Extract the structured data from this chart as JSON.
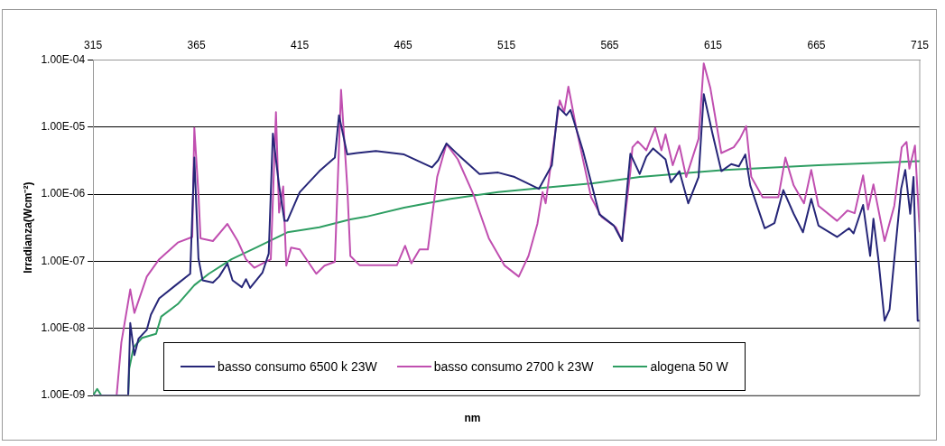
{
  "chart_data": {
    "type": "line",
    "xlabel": "nm",
    "ylabel": "Irradianza(Wcm⁻²)",
    "log": "y",
    "grid": "y",
    "legend": "bottom",
    "marker": "none",
    "line_style": "solid",
    "xlim": [
      315,
      715
    ],
    "xticks": [
      315,
      365,
      415,
      465,
      515,
      565,
      615,
      665,
      715
    ],
    "ylim": [
      1e-09,
      0.0001
    ],
    "yticks": [
      {
        "value": 1e-09,
        "label": "1.00E-09"
      },
      {
        "value": 1e-08,
        "label": "1.00E-08"
      },
      {
        "value": 1e-07,
        "label": "1.00E-07"
      },
      {
        "value": 1e-06,
        "label": "1.00E-06"
      },
      {
        "value": 1e-05,
        "label": "1.00E-05"
      },
      {
        "value": 0.0001,
        "label": "1.00E-04"
      }
    ],
    "series": [
      {
        "name": "basso consumo 6500 k 23W",
        "color": "#262678",
        "x": [
          315,
          332,
          333,
          335,
          337,
          341,
          343,
          347,
          355,
          362,
          364,
          366,
          368,
          373,
          376,
          380,
          382.5,
          387,
          389,
          391,
          397,
          400,
          402,
          405,
          407.6,
          409,
          415,
          424.5,
          432,
          434,
          438,
          442.7,
          451.8,
          465.5,
          479,
          482,
          486,
          491.5,
          502,
          511,
          519,
          530.7,
          537,
          540,
          544,
          546,
          552,
          560,
          567,
          571,
          575,
          579.5,
          582.7,
          586,
          592,
          594.6,
          598.7,
          603,
          608,
          610.5,
          614.6,
          619,
          623.8,
          627.5,
          630.6,
          633,
          640,
          644.7,
          649,
          654,
          658.5,
          662.5,
          666,
          675,
          680.8,
          683,
          687.6,
          691,
          692.6,
          695,
          698,
          700.4,
          702.7,
          706,
          708,
          710.4,
          712,
          714,
          715
        ],
        "values": [
          1e-09,
          1e-09,
          1.2e-08,
          4e-09,
          7e-09,
          9.5e-09,
          1.6e-08,
          2.8e-08,
          4.4e-08,
          6.5e-08,
          3.5e-06,
          1.1e-07,
          5.2e-08,
          4.8e-08,
          5.9e-08,
          9.3e-08,
          5.2e-08,
          4.1e-08,
          5.4e-08,
          4e-08,
          6.8e-08,
          1.3e-07,
          8e-06,
          1.35e-06,
          4e-07,
          4e-07,
          1.07e-06,
          2.2e-06,
          3.5e-06,
          1.5e-05,
          3.9e-06,
          4.1e-06,
          4.4e-06,
          3.9e-06,
          2.5e-06,
          3.2e-06,
          5.7e-06,
          3.9e-06,
          2e-06,
          2.1e-06,
          1.8e-06,
          1.2e-06,
          2.7e-06,
          2e-05,
          1.5e-05,
          1.8e-05,
          4.5e-06,
          5e-07,
          3.4e-07,
          2e-07,
          4e-06,
          2e-06,
          3.6e-06,
          4.8e-06,
          3.3e-06,
          1.5e-06,
          2.2e-06,
          7.3e-07,
          1.8e-06,
          3.1e-05,
          8.3e-06,
          2.2e-06,
          2.8e-06,
          2.6e-06,
          3.9e-06,
          1.35e-06,
          3.1e-07,
          3.7e-07,
          1.15e-06,
          5.1e-07,
          2.7e-07,
          8.5e-07,
          3.4e-07,
          2.3e-07,
          3.1e-07,
          2.6e-07,
          6.9e-07,
          1.2e-07,
          4.3e-07,
          1.07e-07,
          1.3e-08,
          1.9e-08,
          1.07e-07,
          1.2e-06,
          2.3e-06,
          5.1e-07,
          1.8e-06,
          1.3e-08,
          1.3e-08
        ]
      },
      {
        "name": "basso consumo 2700 k 23W",
        "color": "#c04fb0",
        "x": [
          315,
          326.4,
          328.7,
          333,
          335,
          341,
          347,
          356,
          363,
          364,
          366,
          367,
          373,
          380,
          385,
          389,
          393,
          401,
          403.5,
          405,
          407,
          408.5,
          410.8,
          415,
          423,
          427,
          432,
          435,
          438,
          439.5,
          444,
          462,
          466,
          469,
          473,
          477,
          481.5,
          486,
          491.5,
          499,
          506.5,
          514,
          521,
          525.7,
          530,
          532.5,
          534,
          537,
          540.8,
          543,
          545,
          549,
          556,
          561,
          568,
          571,
          575,
          576,
          578.6,
          582.7,
          587,
          590,
          592,
          595.5,
          598.7,
          602,
          608,
          610.5,
          613.7,
          619,
          625,
          628,
          631,
          633.5,
          639,
          646.6,
          650,
          654,
          659,
          662.5,
          666,
          675,
          680,
          683.5,
          687.6,
          690,
          692.6,
          698,
          702.7,
          706.3,
          708.6,
          710,
          712.7,
          715
        ],
        "values": [
          1e-09,
          1e-09,
          6.2e-09,
          3.8e-08,
          1.7e-08,
          5.9e-08,
          1.07e-07,
          1.9e-07,
          2.3e-07,
          9.7e-06,
          1e-06,
          2.2e-07,
          2e-07,
          3.6e-07,
          2e-07,
          1.07e-07,
          8e-08,
          1.07e-07,
          1.67e-05,
          5.3e-07,
          1.3e-06,
          8.6e-08,
          1.6e-07,
          1.5e-07,
          6.5e-08,
          8.6e-08,
          9.8e-08,
          3.6e-05,
          1.3e-06,
          1.2e-07,
          8.7e-08,
          8.7e-08,
          1.7e-07,
          9.3e-08,
          1.5e-07,
          1.5e-07,
          1.8e-06,
          5.6e-06,
          3.3e-06,
          1e-06,
          2.2e-07,
          8.7e-08,
          5.9e-08,
          1.2e-07,
          3.6e-07,
          1.07e-06,
          7.3e-07,
          3.6e-06,
          2.5e-05,
          1.67e-05,
          4e-05,
          9e-06,
          9e-07,
          4.6e-07,
          3.2e-07,
          2e-07,
          2.2e-06,
          5e-06,
          6.1e-06,
          4.5e-06,
          9.7e-06,
          4.5e-06,
          7.8e-06,
          2.7e-06,
          5.3e-06,
          1.8e-06,
          6.7e-06,
          8.9e-05,
          3.8e-05,
          4.1e-06,
          5e-06,
          6.7e-06,
          1.03e-05,
          1.8e-06,
          9e-07,
          9e-07,
          3.5e-06,
          1.35e-06,
          7.3e-07,
          2.3e-06,
          6.7e-07,
          4e-07,
          5.7e-07,
          5.2e-07,
          1.9e-06,
          5.9e-07,
          1.4e-06,
          2e-07,
          6.7e-07,
          5e-06,
          6e-06,
          2.4e-06,
          5.3e-06,
          2.7e-07
        ]
      },
      {
        "name": "alogena 50 W",
        "color": "#2e9e62",
        "x": [
          315,
          317,
          319,
          332,
          332.5,
          334.6,
          338.7,
          345.5,
          348,
          356,
          364,
          371,
          382,
          394,
          409,
          424.5,
          439.5,
          447,
          465.5,
          488,
          511,
          534,
          557,
          579.5,
          620.6,
          666,
          715
        ],
        "values": [
          1e-09,
          1.25e-09,
          1e-09,
          1e-09,
          2.5e-09,
          5.2e-09,
          7.2e-09,
          8.3e-09,
          1.5e-08,
          2.3e-08,
          4.4e-08,
          6.5e-08,
          1.07e-07,
          1.6e-07,
          2.7e-07,
          3.2e-07,
          4.2e-07,
          4.6e-07,
          6.3e-07,
          8.5e-07,
          1.07e-06,
          1.25e-06,
          1.45e-06,
          1.8e-06,
          2.3e-06,
          2.7e-06,
          3.1e-06
        ]
      }
    ]
  }
}
